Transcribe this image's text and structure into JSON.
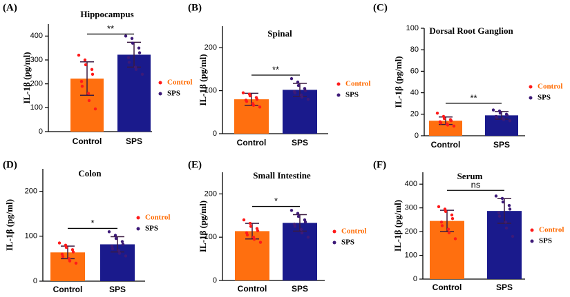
{
  "chart_data": [
    {
      "type": "bar",
      "panel": "(A)",
      "title": "Hippocampus",
      "ylabel": "IL-1β (pg/ml)",
      "categories": [
        "Control",
        "SPS"
      ],
      "values": [
        222,
        322
      ],
      "errors": [
        70,
        52
      ],
      "points": [
        [
          320,
          300,
          280,
          260,
          240,
          210,
          190,
          160,
          130,
          95
        ],
        [
          400,
          390,
          370,
          350,
          330,
          310,
          290,
          270,
          260,
          240
        ]
      ],
      "colors": [
        "#ff6f0f",
        "#1a1a8c"
      ],
      "point_colors": [
        "#ff1a1a",
        "#3d1a78"
      ],
      "legend_text_colors": [
        "#ff6a00",
        "#000000"
      ],
      "significance": "**",
      "ylim": [
        0,
        450
      ],
      "yticks": [
        0,
        100,
        200,
        300,
        400
      ],
      "legend": "right"
    },
    {
      "type": "bar",
      "panel": "(B)",
      "title": "Spinal",
      "ylabel": "IL-1β (pg/ml)",
      "categories": [
        "Control",
        "SPS"
      ],
      "values": [
        80,
        102
      ],
      "errors": [
        14,
        15
      ],
      "points": [
        [
          95,
          92,
          88,
          84,
          80,
          78,
          75,
          70,
          66,
          62
        ],
        [
          128,
          120,
          112,
          105,
          100,
          98,
          95,
          90,
          85,
          80
        ]
      ],
      "colors": [
        "#ff6f0f",
        "#1a1a8c"
      ],
      "point_colors": [
        "#ff1a1a",
        "#3d1a78"
      ],
      "legend_text_colors": [
        "#ff6a00",
        "#000000"
      ],
      "significance": "**",
      "ylim": [
        0,
        250
      ],
      "yticks": [
        0,
        100,
        200
      ],
      "legend": "right"
    },
    {
      "type": "bar",
      "panel": "(C)",
      "title": "Dorsal Root Ganglion",
      "ylabel": "IL-1β (pg/ml)",
      "categories": [
        "Control",
        "SPS"
      ],
      "values": [
        14,
        19
      ],
      "errors": [
        3.5,
        3.5
      ],
      "points": [
        [
          21,
          18,
          16,
          15,
          14,
          13,
          12,
          11,
          10,
          9
        ],
        [
          24,
          23,
          21,
          20,
          19,
          18,
          17,
          16,
          15,
          14
        ]
      ],
      "colors": [
        "#ff6f0f",
        "#1a1a8c"
      ],
      "point_colors": [
        "#ff1a1a",
        "#3d1a78"
      ],
      "legend_text_colors": [
        "#ff6a00",
        "#000000"
      ],
      "significance": "**",
      "ylim": [
        0,
        100
      ],
      "yticks": [
        0,
        20,
        40,
        60,
        80,
        100
      ],
      "legend": "right"
    },
    {
      "type": "bar",
      "panel": "(D)",
      "title": "Colon",
      "ylabel": "IL-1β (pg/ml)",
      "categories": [
        "Control",
        "SPS"
      ],
      "values": [
        64,
        82
      ],
      "errors": [
        14,
        17
      ],
      "points": [
        [
          85,
          80,
          75,
          70,
          65,
          60,
          55,
          50,
          45,
          40
        ],
        [
          110,
          102,
          95,
          88,
          82,
          78,
          72,
          68,
          62,
          56
        ]
      ],
      "colors": [
        "#ff6f0f",
        "#1a1a8c"
      ],
      "point_colors": [
        "#ff1a1a",
        "#3d1a78"
      ],
      "legend_text_colors": [
        "#ff6a00",
        "#000000"
      ],
      "significance": "*",
      "ylim": [
        0,
        250
      ],
      "yticks": [
        0,
        100,
        200
      ],
      "legend": "right"
    },
    {
      "type": "bar",
      "panel": "(E)",
      "title": "Small Intestine",
      "ylabel": "IL-1β (pg/ml)",
      "categories": [
        "Control",
        "SPS"
      ],
      "values": [
        114,
        133
      ],
      "errors": [
        18,
        19
      ],
      "points": [
        [
          140,
          132,
          125,
          120,
          115,
          110,
          105,
          100,
          95,
          88
        ],
        [
          162,
          155,
          148,
          140,
          135,
          130,
          125,
          118,
          110,
          100
        ]
      ],
      "colors": [
        "#ff6f0f",
        "#1a1a8c"
      ],
      "point_colors": [
        "#ff1a1a",
        "#3d1a78"
      ],
      "legend_text_colors": [
        "#ff6a00",
        "#000000"
      ],
      "significance": "*",
      "ylim": [
        0,
        250
      ],
      "yticks": [
        0,
        100,
        200
      ],
      "legend": "right"
    },
    {
      "type": "bar",
      "panel": "(F)",
      "title": "Serum",
      "ylabel": "IL-1β (pg/ml)",
      "categories": [
        "Control",
        "SPS"
      ],
      "values": [
        245,
        287
      ],
      "errors": [
        45,
        52
      ],
      "points": [
        [
          305,
          295,
          285,
          270,
          255,
          240,
          225,
          210,
          195,
          170
        ],
        [
          350,
          340,
          325,
          310,
          295,
          280,
          265,
          240,
          215,
          180
        ]
      ],
      "colors": [
        "#ff6f0f",
        "#1a1a8c"
      ],
      "point_colors": [
        "#ff1a1a",
        "#3d1a78"
      ],
      "legend_text_colors": [
        "#ff6a00",
        "#000000"
      ],
      "significance": "ns",
      "ylim": [
        0,
        450
      ],
      "yticks": [
        0,
        100,
        200,
        300,
        400
      ],
      "legend": "right"
    }
  ]
}
